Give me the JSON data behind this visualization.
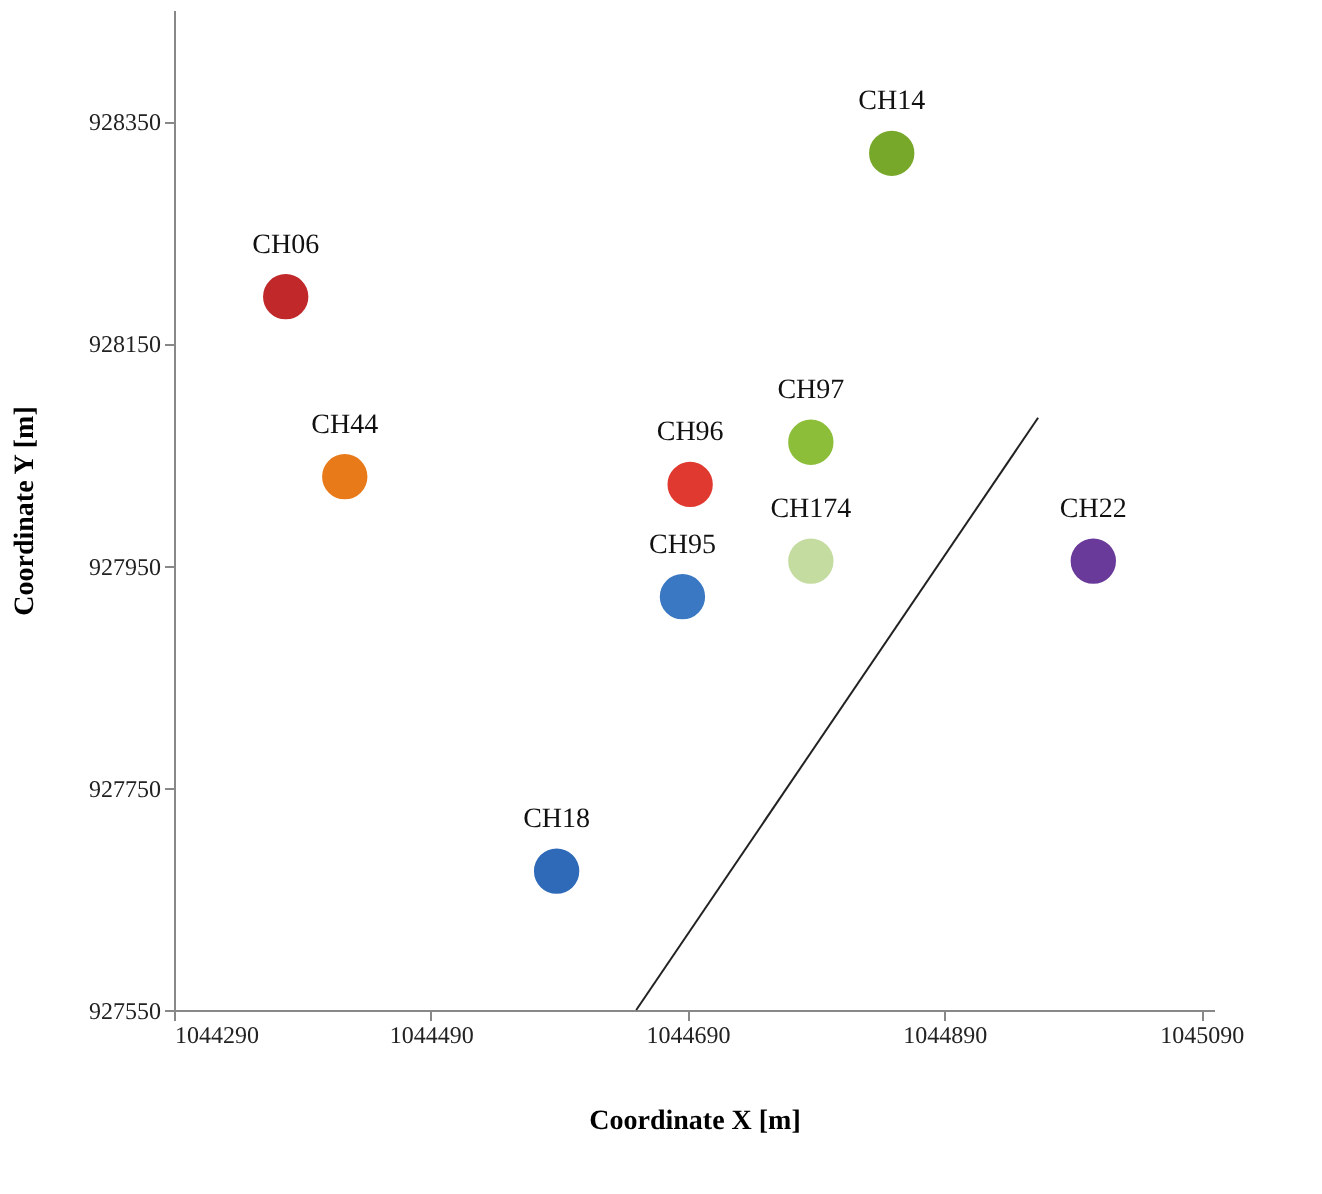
{
  "chart_data": {
    "type": "scatter",
    "xlabel": "Coordinate X [m]",
    "ylabel": "Coordinate Y [m]",
    "xlim": [
      1044290,
      1045100
    ],
    "xticks": [
      1044290,
      1044490,
      1044690,
      1044890,
      1045090
    ],
    "ylim": [
      927550,
      928450
    ],
    "yticks": [
      927550,
      927750,
      927950,
      928150,
      928350
    ],
    "grid": false,
    "series": [
      {
        "marker": "circle",
        "x": [
          1044377,
          1044423,
          1044692,
          1044686,
          1044588,
          1044849,
          1044786,
          1044786,
          1045006
        ],
        "values": [
          928192,
          928030,
          928023,
          927922,
          927675,
          928321,
          928061,
          927954,
          927954
        ],
        "colors": [
          "#c0282a",
          "#e87a1a",
          "#e03a30",
          "#3a78c4",
          "#2e6ab8",
          "#78a82a",
          "#8cbe3a",
          "#c4dca0",
          "#6a3a9a"
        ]
      },
      {
        "type": "line",
        "x": [
          1044650,
          1044963
        ],
        "values": [
          927550,
          928083
        ],
        "color": "#222222",
        "line_style": "solid",
        "marker": "none"
      }
    ],
    "annotations": [
      {
        "text": "CH06",
        "x": 1044377,
        "y": 928192
      },
      {
        "text": "CH44",
        "x": 1044423,
        "y": 928030
      },
      {
        "text": "CH96",
        "x": 1044692,
        "y": 928023
      },
      {
        "text": "CH95",
        "x": 1044686,
        "y": 927922
      },
      {
        "text": "CH18",
        "x": 1044588,
        "y": 927675
      },
      {
        "text": "CH14",
        "x": 1044849,
        "y": 928321
      },
      {
        "text": "CH97",
        "x": 1044786,
        "y": 928061
      },
      {
        "text": "CH174",
        "x": 1044786,
        "y": 927954
      },
      {
        "text": "CH22",
        "x": 1045006,
        "y": 927954
      }
    ]
  }
}
